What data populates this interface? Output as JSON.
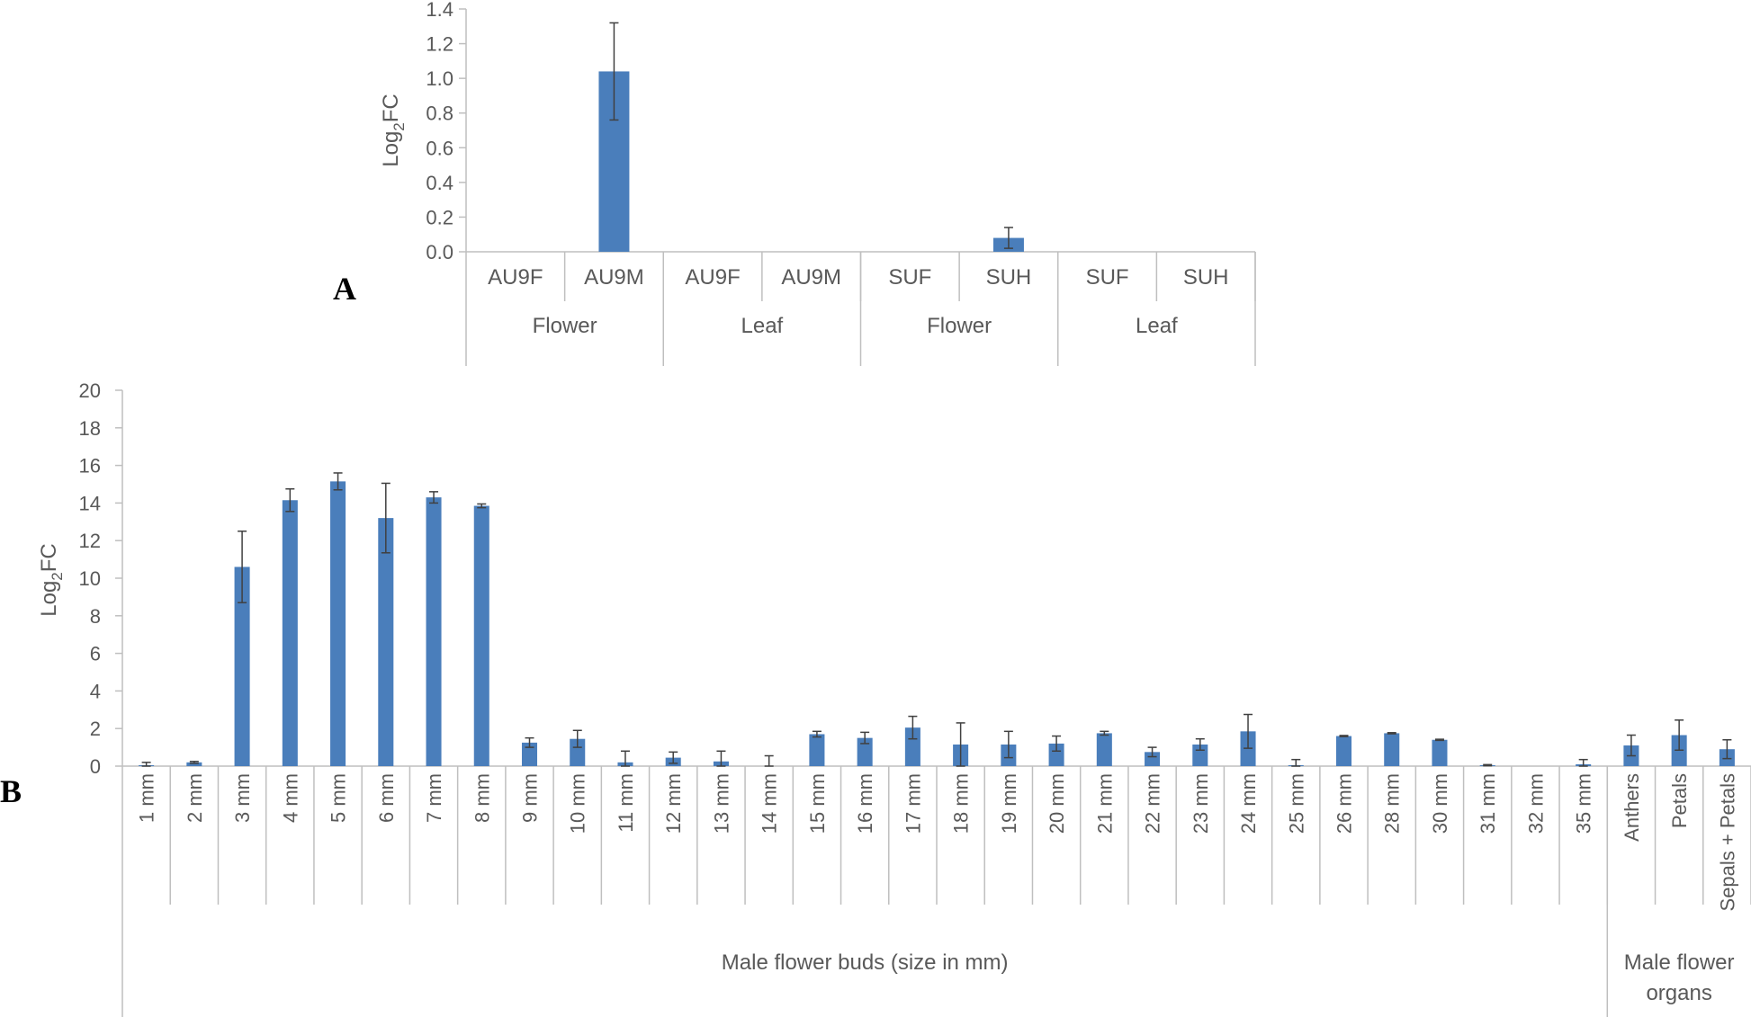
{
  "colors": {
    "bar": "#4a7ebb",
    "axis": "#bfbfbf",
    "text": "#595959",
    "error": "#404040"
  },
  "chart_data": [
    {
      "type": "bar",
      "panel_label": "A",
      "ylabel_main": "Log",
      "ylabel_sub": "2",
      "ylabel_tail": "FC",
      "ylim": [
        0,
        1.4
      ],
      "ytick_step": 0.2,
      "ytick_decimals": 1,
      "grid": false,
      "categories": [
        "AU9F",
        "AU9M",
        "AU9F",
        "AU9M",
        "SUF",
        "SUH",
        "SUF",
        "SUH"
      ],
      "groups": [
        {
          "label": "Flower",
          "count": 2
        },
        {
          "label": "Leaf",
          "count": 2
        },
        {
          "label": "Flower",
          "count": 2
        },
        {
          "label": "Leaf",
          "count": 2
        }
      ],
      "values": [
        0,
        1.04,
        0,
        0,
        0,
        0.08,
        0,
        0
      ],
      "errors": [
        0,
        0.28,
        0,
        0,
        0,
        0.06,
        0,
        0
      ]
    },
    {
      "type": "bar",
      "panel_label": "B",
      "ylabel_main": "Log",
      "ylabel_sub": "2",
      "ylabel_tail": "FC",
      "ylim": [
        0,
        20
      ],
      "ytick_step": 2,
      "ytick_decimals": 0,
      "grid": false,
      "categories": [
        "1 mm",
        "2 mm",
        "3 mm",
        "4 mm",
        "5 mm",
        "6 mm",
        "7 mm",
        "8 mm",
        "9 mm",
        "10 mm",
        "11 mm",
        "12 mm",
        "13 mm",
        "14 mm",
        "15 mm",
        "16 mm",
        "17 mm",
        "18 mm",
        "19 mm",
        "20 mm",
        "21 mm",
        "22 mm",
        "23 mm",
        "24 mm",
        "25 mm",
        "26 mm",
        "28 mm",
        "30 mm",
        "31 mm",
        "32 mm",
        "35 mm",
        "Anthers",
        "Petals",
        "Sepals + Petals"
      ],
      "groups": [
        {
          "label": "Male flower buds (size in mm)",
          "count": 31
        },
        {
          "label": "Male flower organs",
          "count": 3
        }
      ],
      "values": [
        0.05,
        0.2,
        10.6,
        14.15,
        15.15,
        13.2,
        14.3,
        13.85,
        1.25,
        1.45,
        0.2,
        0.45,
        0.25,
        0,
        1.7,
        1.5,
        2.05,
        1.15,
        1.15,
        1.2,
        1.75,
        0.75,
        1.15,
        1.85,
        0.05,
        1.6,
        1.75,
        1.4,
        0.05,
        0,
        0.1,
        1.1,
        1.65,
        0.9
      ],
      "errors": [
        0.15,
        0.05,
        1.9,
        0.6,
        0.45,
        1.85,
        0.3,
        0.1,
        0.25,
        0.45,
        0.6,
        0.3,
        0.55,
        0.55,
        0.15,
        0.3,
        0.6,
        1.15,
        0.7,
        0.4,
        0.1,
        0.25,
        0.3,
        0.9,
        0.3,
        0.03,
        0.03,
        0.03,
        0.03,
        0,
        0.25,
        0.55,
        0.8,
        0.5
      ]
    }
  ]
}
